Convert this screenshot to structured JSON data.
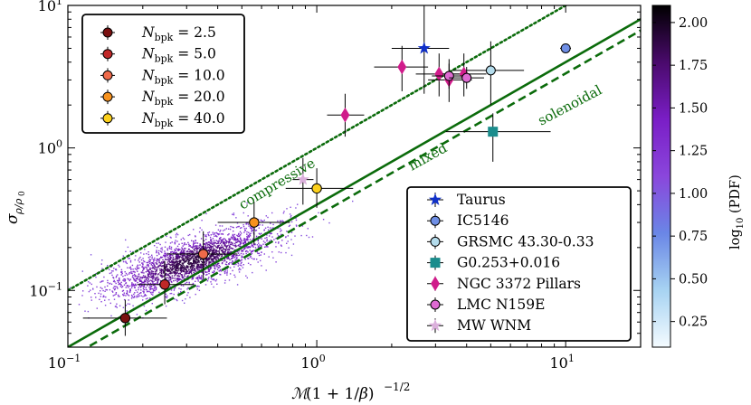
{
  "chart_data": {
    "type": "scatter",
    "xscale": "log",
    "yscale": "log",
    "xlim": [
      0.1,
      20
    ],
    "ylim": [
      0.04,
      10
    ],
    "xlabel": "M(1 + 1/β)^{-1/2}",
    "ylabel": "σ_{ρ/ρ0}",
    "x_tick_labels": [
      "10^-1",
      "10^0",
      "10^1"
    ],
    "y_tick_labels": [
      "10^-1",
      "10^0",
      "10^1"
    ],
    "lines": [
      {
        "name": "compressive",
        "label": "compressive",
        "slope": 1.0,
        "style": "dotted",
        "color": "#0b6b0b"
      },
      {
        "name": "mixed",
        "label": "mixed",
        "slope": 0.4,
        "style": "solid",
        "color": "#0b6b0b"
      },
      {
        "name": "solenoidal",
        "label": "solenoidal",
        "slope": 0.3333,
        "style": "dashed",
        "color": "#0b6b0b"
      }
    ],
    "simulation_legend": {
      "entries": [
        {
          "label": "N_bpk = 2.5",
          "sub": "bpk",
          "value": "= 2.5",
          "color": "#7a1010"
        },
        {
          "label": "N_bpk = 5.0",
          "sub": "bpk",
          "value": "= 5.0",
          "color": "#c02828"
        },
        {
          "label": "N_bpk = 10.0",
          "sub": "bpk",
          "value": "= 10.0",
          "color": "#ef6a4a"
        },
        {
          "label": "N_bpk = 20.0",
          "sub": "bpk",
          "value": "= 20.0",
          "color": "#f7921e"
        },
        {
          "label": "N_bpk = 40.0",
          "sub": "bpk",
          "value": "= 40.0",
          "color": "#fcd01c"
        }
      ]
    },
    "simulation_points": [
      {
        "series": "N_bpk = 2.5",
        "x": 0.17,
        "y": 0.064,
        "xlo": 0.115,
        "xhi": 0.25,
        "ylo": 0.048,
        "yhi": 0.086,
        "color": "#7a1010"
      },
      {
        "series": "N_bpk = 5.0",
        "x": 0.245,
        "y": 0.11,
        "xlo": 0.19,
        "xhi": 0.32,
        "ylo": 0.08,
        "yhi": 0.16,
        "color": "#c02828"
      },
      {
        "series": "N_bpk = 10.0",
        "x": 0.35,
        "y": 0.18,
        "xlo": 0.25,
        "xhi": 0.48,
        "ylo": 0.12,
        "yhi": 0.26,
        "color": "#ef6a4a"
      },
      {
        "series": "N_bpk = 20.0",
        "x": 0.56,
        "y": 0.3,
        "xlo": 0.4,
        "xhi": 0.78,
        "ylo": 0.21,
        "yhi": 0.42,
        "color": "#f7921e"
      },
      {
        "series": "N_bpk = 40.0",
        "x": 1.0,
        "y": 0.52,
        "xlo": 0.75,
        "xhi": 1.4,
        "ylo": 0.38,
        "yhi": 0.72,
        "color": "#fcd01c"
      }
    ],
    "observation_legend": {
      "entries": [
        {
          "label": "Taurus",
          "marker": "star",
          "color": "#1030c8"
        },
        {
          "label": "IC5146",
          "marker": "circle",
          "color": "#6f8fe6"
        },
        {
          "label": "GRSMC 43.30-0.33",
          "marker": "circle",
          "color": "#b4dcec"
        },
        {
          "label": "G0.253+0.016",
          "marker": "square",
          "color": "#1a8c8c"
        },
        {
          "label": "NGC 3372 Pillars",
          "marker": "diamond",
          "color": "#d01c8b"
        },
        {
          "label": "LMC N159E",
          "marker": "circle",
          "color": "#de6ad2"
        },
        {
          "label": "MW WNM",
          "marker": "star",
          "color": "#dbb0dc"
        }
      ]
    },
    "observation_points": [
      {
        "series": "Taurus",
        "x": 2.7,
        "y": 5.0,
        "xlo": 2.0,
        "xhi": 3.4,
        "ylo": 2.4,
        "yhi": 10.0,
        "marker": "star",
        "color": "#1030c8"
      },
      {
        "series": "IC5146",
        "x": 10.0,
        "y": 5.0,
        "xlo": 9.5,
        "xhi": 10.5,
        "ylo": 4.9,
        "yhi": 5.1,
        "marker": "circle",
        "color": "#6f8fe6"
      },
      {
        "series": "GRSMC 43.30-0.33",
        "x": 5.0,
        "y": 3.5,
        "xlo": 3.5,
        "xhi": 6.8,
        "ylo": 2.0,
        "yhi": 5.6,
        "marker": "circle",
        "color": "#b4dcec"
      },
      {
        "series": "G0.253+0.016",
        "x": 5.1,
        "y": 1.3,
        "xlo": 3.3,
        "xhi": 8.7,
        "ylo": 0.8,
        "yhi": 1.75,
        "marker": "square",
        "color": "#1a8c8c"
      },
      {
        "series": "NGC 3372 Pillars",
        "x": 2.2,
        "y": 3.7,
        "xlo": 1.7,
        "xhi": 2.8,
        "ylo": 2.5,
        "yhi": 5.2,
        "marker": "diamond",
        "color": "#d01c8b"
      },
      {
        "series": "NGC 3372 Pillars",
        "x": 1.3,
        "y": 1.7,
        "xlo": 1.1,
        "xhi": 1.55,
        "ylo": 1.2,
        "yhi": 2.4,
        "marker": "diamond",
        "color": "#d01c8b"
      },
      {
        "series": "NGC 3372 Pillars",
        "x": 3.1,
        "y": 3.3,
        "xlo": 2.5,
        "xhi": 3.9,
        "ylo": 2.3,
        "yhi": 4.6,
        "marker": "diamond",
        "color": "#d01c8b"
      },
      {
        "series": "NGC 3372 Pillars",
        "x": 3.4,
        "y": 3.0,
        "xlo": 2.8,
        "xhi": 4.2,
        "ylo": 2.1,
        "yhi": 4.2,
        "marker": "diamond",
        "color": "#d01c8b"
      },
      {
        "series": "NGC 3372 Pillars",
        "x": 3.9,
        "y": 3.3,
        "xlo": 3.2,
        "xhi": 4.8,
        "ylo": 2.3,
        "yhi": 4.6,
        "marker": "diamond",
        "color": "#d01c8b"
      },
      {
        "series": "LMC N159E",
        "x": 3.4,
        "y": 3.2,
        "xlo": 2.9,
        "xhi": 4.0,
        "ylo": 2.6,
        "yhi": 3.9,
        "marker": "circle",
        "color": "#de6ad2"
      },
      {
        "series": "LMC N159E",
        "x": 4.0,
        "y": 3.1,
        "xlo": 3.4,
        "xhi": 4.7,
        "ylo": 2.6,
        "yhi": 3.7,
        "marker": "circle",
        "color": "#de6ad2"
      },
      {
        "series": "MW WNM",
        "x": 0.88,
        "y": 0.6,
        "xlo": 0.8,
        "xhi": 0.97,
        "ylo": 0.4,
        "yhi": 0.85,
        "marker": "star",
        "color": "#dbb0dc"
      }
    ],
    "density": {
      "description": "log10 of PDF of simulation data",
      "x_center": 0.31,
      "y_center": 0.16,
      "count": 2600
    },
    "colorbar": {
      "label": "log10(PDF)",
      "min": 0.1,
      "max": 2.1,
      "ticks": [
        "0.25",
        "0.50",
        "0.75",
        "1.00",
        "1.25",
        "1.50",
        "1.75",
        "2.00"
      ],
      "tick_values": [
        0.25,
        0.5,
        0.75,
        1.0,
        1.25,
        1.5,
        1.75,
        2.0
      ],
      "colors": [
        "#f4fbff",
        "#a7d3f2",
        "#6a86e6",
        "#8a46dc",
        "#7a1ec6",
        "#4a0a6c",
        "#000000"
      ]
    }
  }
}
